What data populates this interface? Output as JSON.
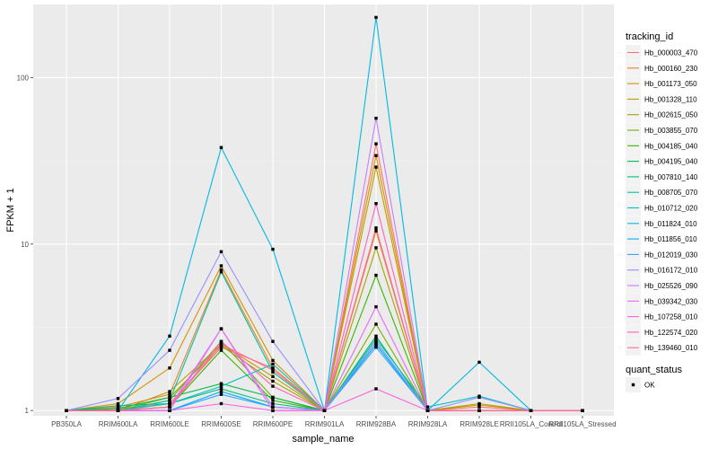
{
  "chart_data": {
    "type": "line",
    "xlabel": "sample_name",
    "ylabel": "FPKM + 1",
    "y_scale": "log10",
    "ylim": [
      0.93,
      275
    ],
    "y_ticks": [
      {
        "value": 1,
        "label": "1"
      },
      {
        "value": 10,
        "label": "10"
      },
      {
        "value": 100,
        "label": "100"
      }
    ],
    "grid": true,
    "legend_position": "right",
    "categories": [
      "PB350LA",
      "RRIM600LA",
      "RRIM600LE",
      "RRIM600SE",
      "RRIM600PE",
      "RRIM901LA",
      "RRIM928BA",
      "RRIM928LA",
      "RRIM928LE",
      "RRII105LA_Control",
      "RRII105LA_Stressed"
    ],
    "legend": {
      "color_title": "tracking_id",
      "shape_title": "quant_status",
      "shape_items": [
        "OK"
      ]
    },
    "series": [
      {
        "name": "Hb_000003_470",
        "color": "#F8766D",
        "values": [
          1.0,
          1.02,
          1.1,
          2.4,
          1.8,
          1.0,
          40.0,
          1.0,
          1.05,
          1.0,
          1.0
        ]
      },
      {
        "name": "Hb_000160_230",
        "color": "#EA8331",
        "values": [
          1.0,
          1.05,
          1.25,
          7.0,
          1.8,
          1.0,
          12.0,
          1.0,
          1.0,
          1.0,
          1.0
        ]
      },
      {
        "name": "Hb_001173_050",
        "color": "#D89000",
        "values": [
          1.0,
          1.1,
          1.8,
          7.4,
          2.0,
          1.0,
          34.0,
          1.0,
          1.08,
          1.0,
          1.0
        ]
      },
      {
        "name": "Hb_001328_110",
        "color": "#C09B00",
        "values": [
          1.0,
          1.0,
          1.3,
          2.5,
          1.6,
          1.0,
          29.0,
          1.0,
          1.0,
          1.0,
          1.0
        ]
      },
      {
        "name": "Hb_002615_050",
        "color": "#A3A500",
        "values": [
          1.0,
          1.0,
          1.2,
          2.45,
          1.5,
          1.0,
          9.5,
          1.0,
          1.1,
          1.0,
          1.0
        ]
      },
      {
        "name": "Hb_003855_070",
        "color": "#7CAE00",
        "values": [
          1.0,
          1.0,
          1.15,
          2.6,
          1.2,
          1.0,
          3.3,
          1.0,
          1.0,
          1.0,
          1.0
        ]
      },
      {
        "name": "Hb_004185_040",
        "color": "#39B600",
        "values": [
          1.0,
          1.0,
          1.05,
          2.3,
          1.15,
          1.0,
          6.5,
          1.0,
          1.0,
          1.0,
          1.0
        ]
      },
      {
        "name": "Hb_004195_040",
        "color": "#00BB4E",
        "values": [
          1.0,
          1.03,
          1.2,
          1.45,
          1.2,
          1.0,
          2.8,
          1.0,
          1.0,
          1.0,
          1.0
        ]
      },
      {
        "name": "Hb_007810_140",
        "color": "#00BF7D",
        "values": [
          1.0,
          1.07,
          1.1,
          1.35,
          1.1,
          1.0,
          2.5,
          1.0,
          1.0,
          1.0,
          1.0
        ]
      },
      {
        "name": "Hb_008705_070",
        "color": "#00C1A3",
        "values": [
          1.0,
          1.0,
          1.15,
          6.8,
          1.7,
          1.0,
          2.6,
          1.0,
          1.0,
          1.0,
          1.0
        ]
      },
      {
        "name": "Hb_010712_020",
        "color": "#00BFC4",
        "values": [
          1.0,
          1.0,
          1.1,
          1.4,
          1.9,
          1.0,
          2.7,
          1.05,
          1.22,
          1.0,
          1.0
        ]
      },
      {
        "name": "Hb_011824_010",
        "color": "#00BAE0",
        "values": [
          1.0,
          1.0,
          2.8,
          38.0,
          9.3,
          1.0,
          230.0,
          1.0,
          1.95,
          1.0,
          1.0
        ]
      },
      {
        "name": "Hb_011856_010",
        "color": "#00B0F6",
        "values": [
          1.0,
          1.0,
          1.0,
          1.3,
          1.05,
          1.0,
          2.5,
          1.0,
          1.0,
          1.0,
          1.0
        ]
      },
      {
        "name": "Hb_012019_030",
        "color": "#35A2FF",
        "values": [
          1.0,
          1.0,
          1.0,
          1.25,
          1.05,
          1.0,
          2.4,
          1.0,
          1.0,
          1.0,
          1.0
        ]
      },
      {
        "name": "Hb_016172_010",
        "color": "#9590FF",
        "values": [
          1.0,
          1.18,
          2.3,
          9.0,
          2.6,
          1.0,
          2.6,
          1.0,
          1.2,
          1.0,
          1.0
        ]
      },
      {
        "name": "Hb_025526_090",
        "color": "#C77CFF",
        "values": [
          1.0,
          1.0,
          1.0,
          3.1,
          1.05,
          1.0,
          57.0,
          1.0,
          1.0,
          1.0,
          1.0
        ]
      },
      {
        "name": "Hb_039342_030",
        "color": "#E76BF3",
        "values": [
          1.0,
          1.0,
          1.05,
          3.1,
          1.0,
          1.0,
          4.2,
          1.0,
          1.0,
          1.0,
          1.0
        ]
      },
      {
        "name": "Hb_107258_010",
        "color": "#FA62DB",
        "values": [
          1.0,
          1.0,
          1.0,
          1.1,
          1.0,
          1.0,
          1.35,
          1.0,
          1.0,
          1.0,
          1.0
        ]
      },
      {
        "name": "Hb_122574_020",
        "color": "#FF62BC",
        "values": [
          1.0,
          1.0,
          1.05,
          2.6,
          1.4,
          1.0,
          17.5,
          1.0,
          1.0,
          1.0,
          1.0
        ]
      },
      {
        "name": "Hb_139460_010",
        "color": "#FF6C91",
        "values": [
          1.0,
          1.0,
          1.05,
          2.5,
          1.75,
          1.0,
          12.5,
          1.0,
          1.0,
          1.0,
          1.0
        ]
      }
    ]
  }
}
